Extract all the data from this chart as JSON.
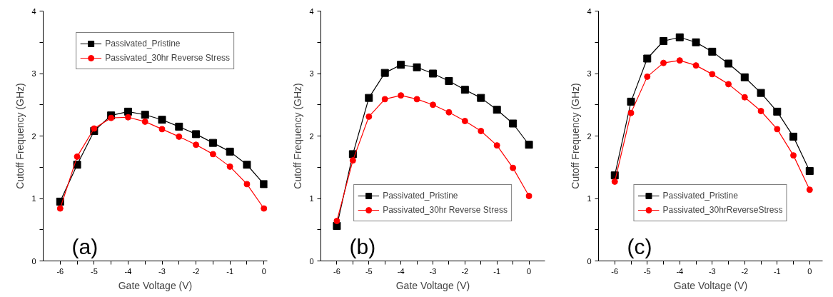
{
  "chart_data": [
    {
      "type": "line",
      "xlabel": "Gate Voltage (V)",
      "ylabel": "Cutoff Frequency (GHz)",
      "annotations": [
        "(a)"
      ],
      "x": [
        -6,
        -5.5,
        -5,
        -4.5,
        -4,
        -3.5,
        -3,
        -2.5,
        -2,
        -1.5,
        -1,
        -0.5,
        0
      ],
      "xlim": [
        -6.5,
        0.1
      ],
      "ylim": [
        0,
        4
      ],
      "xticks": [
        -6,
        {
          "value": -5.5,
          "label": null
        },
        -5,
        {
          "value": -4.5,
          "label": null
        },
        -4,
        {
          "value": -3.5,
          "label": null
        },
        -3,
        {
          "value": -2.5,
          "label": null
        },
        -2,
        {
          "value": -1.5,
          "label": null
        },
        -1,
        {
          "value": -0.5,
          "label": null
        },
        0
      ],
      "yticks": [
        0,
        {
          "value": 0.5,
          "label": null
        },
        1,
        {
          "value": 1.5,
          "label": null
        },
        2,
        {
          "value": 2.5,
          "label": null
        },
        3,
        {
          "value": 3.5,
          "label": null
        },
        4
      ],
      "grid": false,
      "legend": "top",
      "line_style": "solid",
      "series": [
        {
          "name": "Passivated_Pristine",
          "color": "#000000",
          "marker": "square",
          "values": [
            0.95,
            1.54,
            2.08,
            2.33,
            2.39,
            2.34,
            2.26,
            2.15,
            2.03,
            1.89,
            1.75,
            1.54,
            1.23
          ]
        },
        {
          "name": "Passivated_30hr Reverse Stress",
          "color": "#ff0000",
          "marker": "circle",
          "values": [
            0.84,
            1.67,
            2.12,
            2.29,
            2.3,
            2.23,
            2.11,
            1.99,
            1.86,
            1.71,
            1.51,
            1.23,
            0.84
          ]
        }
      ]
    },
    {
      "type": "line",
      "xlabel": "Gate Voltage (V)",
      "ylabel": "Cutoff Frequency (GHz)",
      "annotations": [
        "(b)"
      ],
      "x": [
        -6,
        -5.5,
        -5,
        -4.5,
        -4,
        -3.5,
        -3,
        -2.5,
        -2,
        -1.5,
        -1,
        -0.5,
        0
      ],
      "xlim": [
        -6.5,
        0.5
      ],
      "ylim": [
        0,
        4
      ],
      "xticks": [
        -6,
        {
          "value": -5.5,
          "label": null
        },
        -5,
        {
          "value": -4.5,
          "label": null
        },
        -4,
        {
          "value": -3.5,
          "label": null
        },
        -3,
        {
          "value": -2.5,
          "label": null
        },
        -2,
        {
          "value": -1.5,
          "label": null
        },
        -1,
        {
          "value": -0.5,
          "label": null
        },
        0
      ],
      "yticks": [
        0,
        {
          "value": 0.5,
          "label": null
        },
        1,
        {
          "value": 1.5,
          "label": null
        },
        2,
        {
          "value": 2.5,
          "label": null
        },
        3,
        {
          "value": 3.5,
          "label": null
        },
        4
      ],
      "grid": false,
      "legend": "bottom",
      "line_style": "solid",
      "series": [
        {
          "name": "Passivated_Pristine",
          "color": "#000000",
          "marker": "square",
          "values": [
            0.56,
            1.71,
            2.61,
            3.01,
            3.14,
            3.1,
            3.0,
            2.88,
            2.74,
            2.61,
            2.42,
            2.2,
            1.86
          ]
        },
        {
          "name": "Passivated_30hr Reverse Stress",
          "color": "#ff0000",
          "marker": "circle",
          "values": [
            0.64,
            1.61,
            2.31,
            2.59,
            2.65,
            2.59,
            2.5,
            2.38,
            2.24,
            2.08,
            1.85,
            1.49,
            1.04
          ]
        }
      ]
    },
    {
      "type": "line",
      "xlabel": "Gate Voltage (V)",
      "ylabel": "Cutoff Frequency (GHz)",
      "annotations": [
        "(c)"
      ],
      "x": [
        -6,
        -5.5,
        -5,
        -4.5,
        -4,
        -3.5,
        -3,
        -2.5,
        -2,
        -1.5,
        -1,
        -0.5,
        0
      ],
      "xlim": [
        -6.5,
        0.4
      ],
      "ylim": [
        0,
        4
      ],
      "xticks": [
        -6,
        {
          "value": -5.5,
          "label": null
        },
        -5,
        {
          "value": -4.5,
          "label": null
        },
        -4,
        {
          "value": -3.5,
          "label": null
        },
        -3,
        {
          "value": -2.5,
          "label": null
        },
        -2,
        {
          "value": -1.5,
          "label": null
        },
        -1,
        {
          "value": -0.5,
          "label": null
        },
        0
      ],
      "yticks": [
        0,
        {
          "value": 0.5,
          "label": null
        },
        1,
        {
          "value": 1.5,
          "label": null
        },
        2,
        {
          "value": 2.5,
          "label": null
        },
        3,
        {
          "value": 3.5,
          "label": null
        },
        4
      ],
      "grid": false,
      "legend": "bottom",
      "line_style": "solid",
      "series": [
        {
          "name": "Passivated_Pristine",
          "color": "#000000",
          "marker": "square",
          "values": [
            1.37,
            2.55,
            3.24,
            3.52,
            3.58,
            3.5,
            3.35,
            3.16,
            2.94,
            2.69,
            2.39,
            1.99,
            1.44
          ]
        },
        {
          "name": "Passivated_30hrReverseStress",
          "color": "#ff0000",
          "marker": "circle",
          "values": [
            1.27,
            2.37,
            2.95,
            3.17,
            3.21,
            3.13,
            2.99,
            2.83,
            2.62,
            2.4,
            2.11,
            1.69,
            1.14
          ]
        }
      ]
    }
  ]
}
